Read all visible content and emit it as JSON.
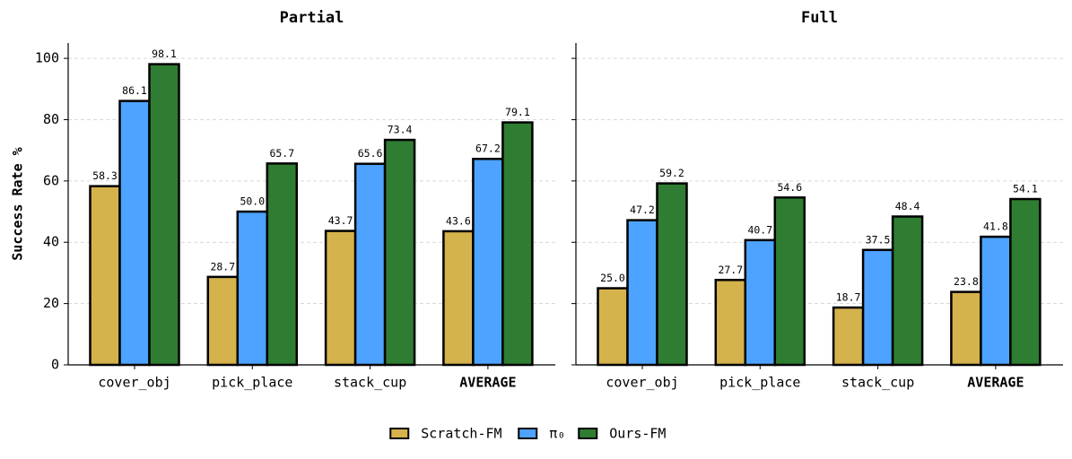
{
  "chart_data": [
    {
      "type": "bar",
      "title": "Partial",
      "ylabel": "Success Rate %",
      "categories": [
        "cover_obj",
        "pick_place",
        "stack_cup",
        "AVERAGE"
      ],
      "series": [
        {
          "name": "Scratch-FM",
          "color": "#d4b24c",
          "values": [
            58.3,
            28.7,
            43.7,
            43.6
          ],
          "value_labels": [
            "58.3",
            "28.7",
            "43.7",
            "43.6"
          ]
        },
        {
          "name": "π₀",
          "color": "#4da3ff",
          "values": [
            86.1,
            50.0,
            65.6,
            67.2
          ],
          "value_labels": [
            "86.1",
            "50.0",
            "65.6",
            "67.2"
          ]
        },
        {
          "name": "Ours-FM",
          "color": "#2e7d32",
          "values": [
            98.1,
            65.7,
            73.4,
            79.1
          ],
          "value_labels": [
            "98.1",
            "65.7",
            "73.4",
            "79.1"
          ]
        }
      ],
      "ylim": [
        0,
        105
      ],
      "yticks": [
        0,
        20,
        40,
        60,
        80,
        100
      ],
      "grid": true
    },
    {
      "type": "bar",
      "title": "Full",
      "categories": [
        "cover_obj",
        "pick_place",
        "stack_cup",
        "AVERAGE"
      ],
      "series": [
        {
          "name": "Scratch-FM",
          "color": "#d4b24c",
          "values": [
            25.0,
            27.7,
            18.7,
            23.8
          ],
          "value_labels": [
            "25.0",
            "27.7",
            "18.7",
            "23.8"
          ]
        },
        {
          "name": "π₀",
          "color": "#4da3ff",
          "values": [
            47.2,
            40.7,
            37.5,
            41.8
          ],
          "value_labels": [
            "47.2",
            "40.7",
            "37.5",
            "41.8"
          ]
        },
        {
          "name": "Ours-FM",
          "color": "#2e7d32",
          "values": [
            59.2,
            54.6,
            48.4,
            54.1
          ],
          "value_labels": [
            "59.2",
            "54.6",
            "48.4",
            "54.1"
          ]
        }
      ],
      "ylim": [
        0,
        105
      ],
      "yticks": [
        0,
        20,
        40,
        60,
        80,
        100
      ],
      "grid": true
    }
  ]
}
